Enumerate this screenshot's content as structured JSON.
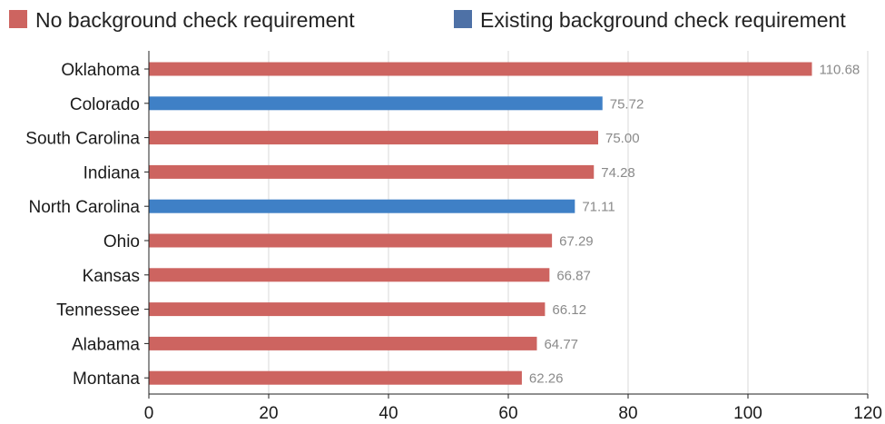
{
  "chart_data": {
    "type": "bar",
    "orientation": "horizontal",
    "title": "",
    "xlabel": "",
    "ylabel": "",
    "xlim": [
      0,
      120
    ],
    "x_ticks": [
      0,
      20,
      40,
      60,
      80,
      100,
      120
    ],
    "grid": "vertical",
    "legend_position": "top",
    "legend": [
      {
        "key": "no_check",
        "label": "No background check requirement",
        "color": "#cd6460"
      },
      {
        "key": "existing_check",
        "label": "Existing background check requirement",
        "color": "#3f80c6"
      }
    ],
    "categories": [
      "Oklahoma",
      "Colorado",
      "South Carolina",
      "Indiana",
      "North Carolina",
      "Ohio",
      "Kansas",
      "Tennessee",
      "Alabama",
      "Montana"
    ],
    "values": [
      110.68,
      75.72,
      75.0,
      74.28,
      71.11,
      67.29,
      66.87,
      66.12,
      64.77,
      62.26
    ],
    "value_labels": [
      "110.68",
      "75.72",
      "75.00",
      "74.28",
      "71.11",
      "67.29",
      "66.87",
      "66.12",
      "64.77",
      "62.26"
    ],
    "groups": [
      "no_check",
      "existing_check",
      "no_check",
      "no_check",
      "existing_check",
      "no_check",
      "no_check",
      "no_check",
      "no_check",
      "no_check"
    ]
  },
  "colors": {
    "no_check_bar": "#cd6460",
    "existing_check_bar": "#3f80c6",
    "legend_existing_swatch": "#4e71a6",
    "grid": "#d9d9d9",
    "axis": "#222222",
    "value_text": "#8a8a8a"
  }
}
